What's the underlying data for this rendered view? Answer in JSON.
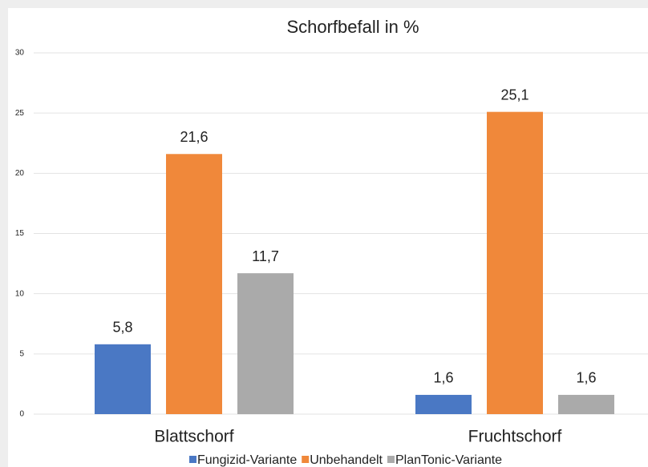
{
  "chart_data": {
    "type": "bar",
    "title": "Schorfbefall in %",
    "categories": [
      "Blattschorf",
      "Fruchtschorf"
    ],
    "series": [
      {
        "name": "Fungizid-Variante",
        "color": "#4a78c4",
        "values": [
          5.8,
          1.6
        ],
        "value_labels": [
          "5,8",
          "1,6"
        ]
      },
      {
        "name": "Unbehandelt",
        "color": "#f0883a",
        "values": [
          21.6,
          25.1
        ],
        "value_labels": [
          "21,6",
          "25,1"
        ]
      },
      {
        "name": "PlanTonic-Variante",
        "color": "#aaaaaa",
        "values": [
          11.7,
          1.6
        ],
        "value_labels": [
          "11,7",
          "1,6"
        ]
      }
    ],
    "ylim": [
      0,
      30
    ],
    "yticks": [
      0,
      5,
      10,
      15,
      20,
      25,
      30
    ],
    "grid": true,
    "legend": "bottom"
  }
}
